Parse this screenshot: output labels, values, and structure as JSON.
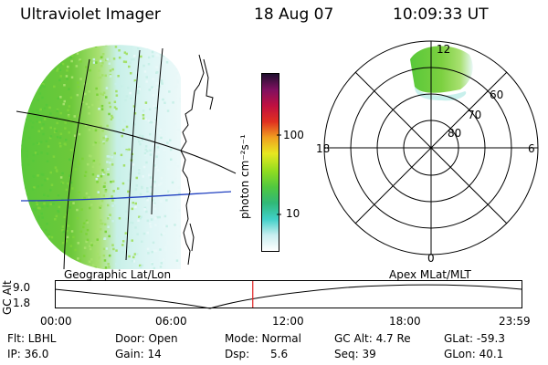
{
  "header": {
    "instrument": "Ultraviolet Imager",
    "date": "18 Aug 07",
    "time": "10:09:33 UT"
  },
  "colorbar": {
    "unit_label": "photon cm⁻²s⁻¹",
    "ticks": [
      "100",
      "10"
    ],
    "scale": "log",
    "colors": [
      "#ffffff",
      "#c8eef0",
      "#40d0c8",
      "#30b878",
      "#50c840",
      "#90dc20",
      "#e8e820",
      "#f0a020",
      "#e03020",
      "#c01040",
      "#801060",
      "#201030"
    ]
  },
  "geo_panel": {
    "label": "Geographic Lat/Lon",
    "aurora_colors": [
      "#58c83a",
      "#7cd33a",
      "#a4e06a",
      "#c8f0e8",
      "#e8f8f8"
    ],
    "highlight_line_color": "#2040c0"
  },
  "polar_panel": {
    "label": "Apex MLat/MLT",
    "mlt_labels": {
      "top": "12",
      "left": "18",
      "right": "6",
      "bottom": "0"
    },
    "lat_labels": [
      "60",
      "70",
      "80"
    ]
  },
  "altitude_plot": {
    "axis_label": "GC Alt",
    "y_ticks": [
      "9.0",
      "1.8"
    ],
    "x_ticks": [
      "00:00",
      "06:00",
      "12:00",
      "18:00",
      "23:59"
    ],
    "current_time_fraction": 0.4232,
    "marker_color": "#e02020"
  },
  "info": {
    "flt": "Flt: LBHL",
    "door": "Door: Open",
    "mode": "Mode: Normal",
    "gc_alt": "GC Alt: 4.7 Re",
    "glat": "GLat: -59.3",
    "ip": "IP: 36.0",
    "gain": "Gain: 14",
    "dsp_label": "Dsp:",
    "dsp_value": "5.6",
    "seq": "Seq: 39",
    "glon": "GLon: 40.1"
  }
}
